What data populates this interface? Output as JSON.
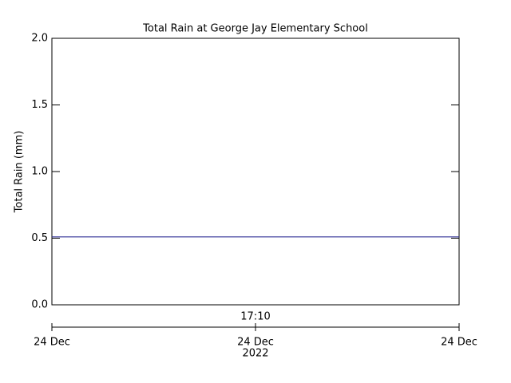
{
  "chart_data": {
    "type": "line",
    "title": "Total Rain at George Jay Elementary School",
    "ylabel": "Total Rain (mm)",
    "time_label": "17:10",
    "date_labels": [
      "24 Dec",
      "24 Dec",
      "24 Dec"
    ],
    "year_label": "2022",
    "values": [
      0.51,
      0.51
    ],
    "color": "#1a1a8c",
    "ylim": [
      0,
      2
    ],
    "yticks": [
      {
        "value": 0,
        "label": "0.0"
      },
      0.5,
      {
        "value": 1,
        "label": "1.0"
      },
      1.5,
      {
        "value": 2,
        "label": "2.0"
      }
    ]
  }
}
